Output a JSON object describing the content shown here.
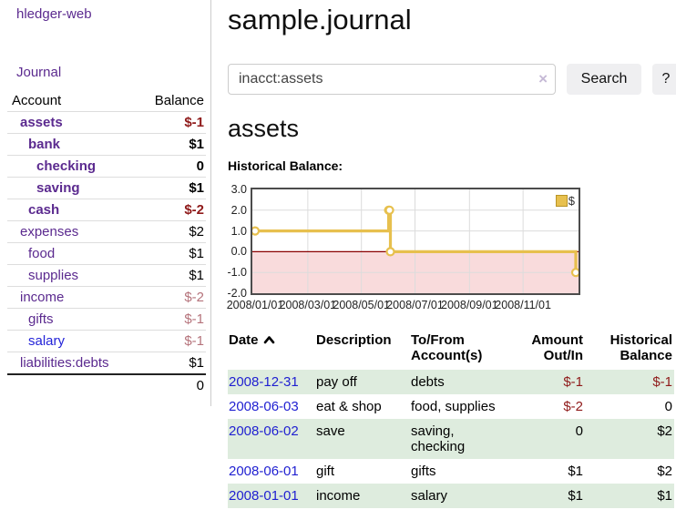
{
  "sidebar": {
    "brand": "hledger-web",
    "nav_journal": "Journal",
    "accounts_header": {
      "account": "Account",
      "balance": "Balance"
    },
    "accounts": [
      {
        "name": "assets",
        "balance": "$-1"
      },
      {
        "name": "bank",
        "balance": "$1"
      },
      {
        "name": "checking",
        "balance": "0"
      },
      {
        "name": "saving",
        "balance": "$1"
      },
      {
        "name": "cash",
        "balance": "$-2"
      },
      {
        "name": "expenses",
        "balance": "$2"
      },
      {
        "name": "food",
        "balance": "$1"
      },
      {
        "name": "supplies",
        "balance": "$1"
      },
      {
        "name": "income",
        "balance": "$-2"
      },
      {
        "name": "gifts",
        "balance": "$-1"
      },
      {
        "name": "salary",
        "balance": "$-1"
      },
      {
        "name": "liabilities:debts",
        "balance": "$1"
      }
    ],
    "total": "0"
  },
  "header": {
    "title": "sample.journal"
  },
  "search": {
    "value": "inacct:assets",
    "clear_label": "×",
    "button_label": "Search",
    "help_label": "?"
  },
  "account_page": {
    "heading": "assets",
    "chart_label": "Historical Balance:"
  },
  "chart_data": {
    "type": "line",
    "style": "step",
    "title": "Historical Balance:",
    "legend": [
      {
        "label": "$",
        "color": "#e7c04e"
      }
    ],
    "ylim": [
      -2,
      3
    ],
    "y_ticks": [
      "3.0",
      "2.0",
      "1.0",
      "0.0",
      "-1.0",
      "-2.0"
    ],
    "x_range": [
      "2008-01-01",
      "2008-12-31"
    ],
    "x_ticks": [
      "2008/01/01",
      "2008/03/01",
      "2008/05/01",
      "2008/07/01",
      "2008/09/01",
      "2008/11/01"
    ],
    "series": [
      {
        "name": "$",
        "points": [
          {
            "date": "2008-01-01",
            "value": 1
          },
          {
            "date": "2008-06-01",
            "value": 2
          },
          {
            "date": "2008-06-02",
            "value": 2
          },
          {
            "date": "2008-06-03",
            "value": 0
          },
          {
            "date": "2008-12-31",
            "value": -1
          }
        ]
      }
    ],
    "colors": {
      "line": "#e7c04e",
      "marker_fill": "#ffffff",
      "zero_line": "#8b0000",
      "negative_fill": "#f9dbdc",
      "grid": "#dcdcdc",
      "border": "#4c4c4c"
    },
    "grid": true,
    "legend_position": "top-right"
  },
  "register": {
    "headers": {
      "date": "Date",
      "description": "Description",
      "tofrom_line1": "To/From",
      "tofrom_line2": "Account(s)",
      "amount_line1": "Amount",
      "amount_line2": "Out/In",
      "balance_line1": "Historical",
      "balance_line2": "Balance"
    },
    "rows": [
      {
        "date": "2008-12-31",
        "description": "pay off",
        "accounts": "debts",
        "amount": "$-1",
        "balance": "$-1"
      },
      {
        "date": "2008-06-03",
        "description": "eat & shop",
        "accounts": "food, supplies",
        "amount": "$-2",
        "balance": "0"
      },
      {
        "date": "2008-06-02",
        "description": "save",
        "accounts": "saving, checking",
        "amount": "0",
        "balance": "$2"
      },
      {
        "date": "2008-06-01",
        "description": "gift",
        "accounts": "gifts",
        "amount": "$1",
        "balance": "$2"
      },
      {
        "date": "2008-01-01",
        "description": "income",
        "accounts": "salary",
        "amount": "$1",
        "balance": "$1"
      }
    ]
  }
}
